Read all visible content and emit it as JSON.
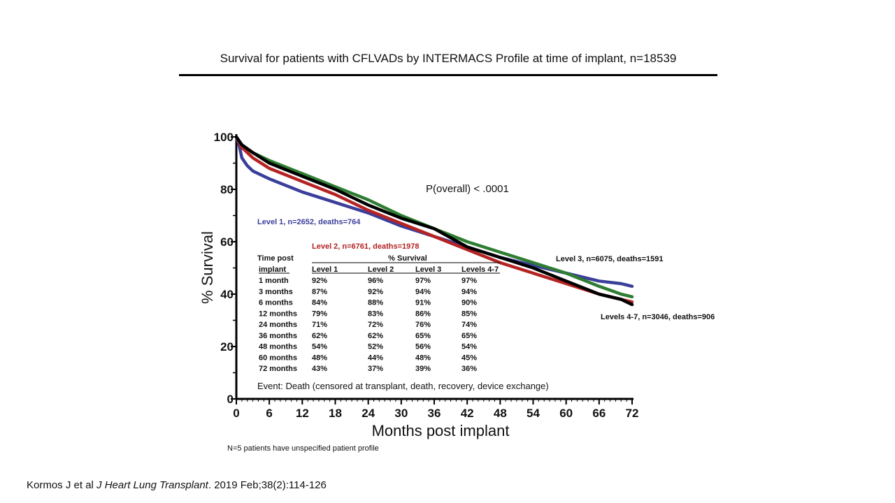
{
  "title": "Survival for patients with CFLVADs by INTERMACS Profile at time of implant,  n=18539",
  "citation": {
    "prefix": "Kormos J et al ",
    "journal": "J Heart Lung Transplant",
    "suffix": ". 2019 Feb;38(2):114-126"
  },
  "chart_data": {
    "type": "line",
    "xlabel": "Months post implant",
    "ylabel": "% Survival",
    "xlim": [
      0,
      72
    ],
    "ylim": [
      0,
      100
    ],
    "xticks": [
      0,
      6,
      12,
      18,
      24,
      30,
      36,
      42,
      48,
      54,
      60,
      66,
      72
    ],
    "yticks": [
      0,
      20,
      40,
      60,
      80,
      100
    ],
    "pvalue": "P(overall) < .0001",
    "event_note": "Event: Death (censored at transplant, death, recovery, device exchange)",
    "footnote": "N=5 patients have unspecified patient profile",
    "series": [
      {
        "name": "Level 1, n=2652, deaths=764",
        "color": "#3b3f9a",
        "x": [
          0,
          0.5,
          1,
          2,
          3,
          6,
          12,
          18,
          24,
          30,
          36,
          42,
          48,
          54,
          60,
          66,
          70,
          72
        ],
        "y": [
          100,
          97,
          92,
          89,
          87,
          84,
          79,
          75,
          71,
          66,
          62,
          58,
          54,
          51,
          48,
          45,
          44,
          43
        ]
      },
      {
        "name": "Level 2, n=6761, deaths=1978",
        "color": "#b52323",
        "x": [
          0,
          0.5,
          1,
          3,
          6,
          12,
          18,
          24,
          30,
          36,
          42,
          48,
          54,
          60,
          66,
          70,
          72
        ],
        "y": [
          100,
          98,
          96,
          92,
          88,
          83,
          78,
          72,
          67,
          62,
          57,
          52,
          48,
          44,
          40,
          38,
          37
        ]
      },
      {
        "name": "Level 3, n=6075, deaths=1591",
        "color": "#2e7d32",
        "x": [
          0,
          1,
          3,
          6,
          12,
          18,
          24,
          30,
          36,
          42,
          48,
          54,
          60,
          66,
          70,
          72
        ],
        "y": [
          100,
          97,
          94,
          91,
          86,
          81,
          76,
          70,
          65,
          60,
          56,
          52,
          48,
          43,
          40,
          39
        ]
      },
      {
        "name": "Levels 4-7, n=3046, deaths=906",
        "color": "#000000",
        "x": [
          0,
          1,
          3,
          6,
          12,
          18,
          24,
          30,
          36,
          42,
          48,
          54,
          60,
          66,
          70,
          72
        ],
        "y": [
          100,
          97,
          94,
          90,
          85,
          80,
          74,
          69,
          65,
          58,
          54,
          50,
          45,
          40,
          38,
          36
        ]
      }
    ],
    "table": {
      "header_left": [
        "Time post",
        "implant"
      ],
      "group_label": "% Survival",
      "columns": [
        "Level 1",
        "Level 2",
        "Level 3",
        "Levels 4-7"
      ],
      "rows": [
        {
          "time": "1 month",
          "values": [
            "92%",
            "96%",
            "97%",
            "97%"
          ]
        },
        {
          "time": "3 months",
          "values": [
            "87%",
            "92%",
            "94%",
            "94%"
          ]
        },
        {
          "time": "6 months",
          "values": [
            "84%",
            "88%",
            "91%",
            "90%"
          ]
        },
        {
          "time": "12 months",
          "values": [
            "79%",
            "83%",
            "86%",
            "85%"
          ]
        },
        {
          "time": "24 months",
          "values": [
            "71%",
            "72%",
            "76%",
            "74%"
          ]
        },
        {
          "time": "36 months",
          "values": [
            "62%",
            "62%",
            "65%",
            "65%"
          ]
        },
        {
          "time": "48 months",
          "values": [
            "54%",
            "52%",
            "56%",
            "54%"
          ]
        },
        {
          "time": "60 months",
          "values": [
            "48%",
            "44%",
            "48%",
            "45%"
          ]
        },
        {
          "time": "72 months",
          "values": [
            "43%",
            "37%",
            "39%",
            "36%"
          ]
        }
      ]
    }
  }
}
